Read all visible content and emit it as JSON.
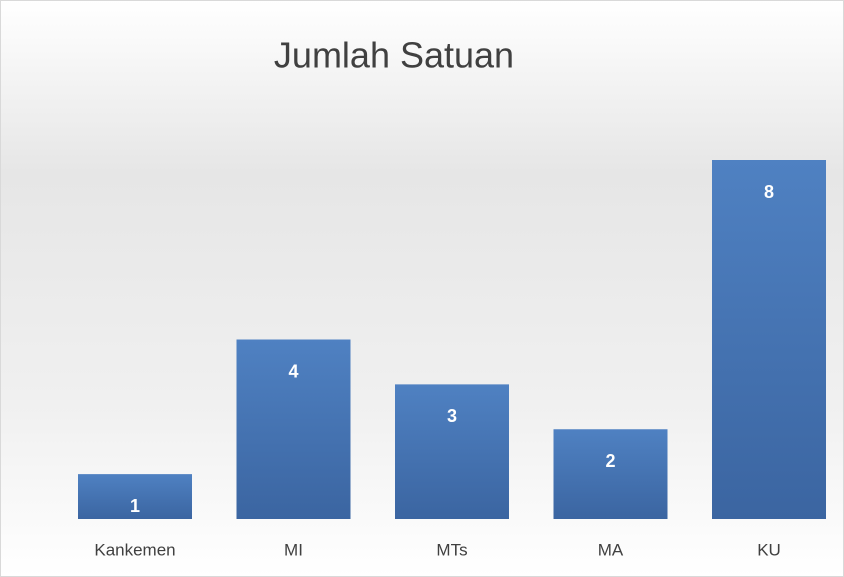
{
  "chart_data": {
    "type": "bar",
    "title": "Jumlah Satuan",
    "categories": [
      "Kankemen",
      "MI",
      "MTs",
      "MA",
      "KU"
    ],
    "values": [
      1,
      4,
      3,
      2,
      8
    ],
    "color": "#4a7cba"
  }
}
